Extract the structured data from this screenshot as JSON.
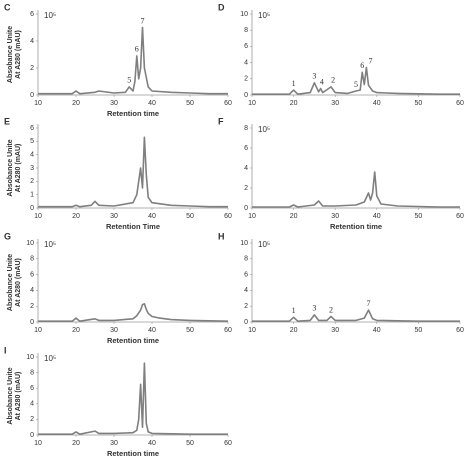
{
  "chart_data": [
    {
      "type": "line",
      "panel": "C",
      "scale_label": "10⁵",
      "ylabel": [
        "Absobance Unite",
        "At A280 (mAU)"
      ],
      "xlabel": "Retention time",
      "color": "#7f7f7f",
      "xlim": [
        10,
        60
      ],
      "xticks": [
        10,
        20,
        30,
        40,
        50,
        60
      ],
      "ylim": [
        0,
        6
      ],
      "yticks": [
        0,
        2,
        4,
        6
      ],
      "x": [
        10,
        15,
        19,
        20,
        21,
        25,
        26,
        30,
        33,
        34,
        35,
        35.5,
        36,
        36.5,
        37,
        37.5,
        38,
        39,
        40,
        45,
        50,
        55,
        60
      ],
      "values": [
        0.1,
        0.1,
        0.1,
        0.3,
        0.1,
        0.2,
        0.3,
        0.15,
        0.2,
        0.6,
        0.3,
        1.0,
        2.9,
        1.2,
        2.0,
        5.0,
        2.0,
        0.6,
        0.3,
        0.2,
        0.15,
        0.1,
        0.1
      ],
      "peak_labels": [
        {
          "label": "5",
          "x": 34,
          "y": 0.6
        },
        {
          "label": "6",
          "x": 36,
          "y": 2.9
        },
        {
          "label": "7",
          "x": 37.5,
          "y": 5.0
        }
      ]
    },
    {
      "type": "line",
      "panel": "D",
      "scale_label": "10⁵",
      "color": "#7f7f7f",
      "xlim": [
        10,
        60
      ],
      "xticks": [
        10,
        20,
        30,
        40,
        50,
        60
      ],
      "ylim": [
        0,
        10
      ],
      "yticks": [
        0,
        2,
        4,
        6,
        8,
        10
      ],
      "x": [
        10,
        15,
        19,
        20,
        21,
        24,
        25,
        26,
        26.5,
        27,
        29,
        30,
        33,
        35,
        36,
        36.5,
        37,
        37.5,
        38,
        39,
        40,
        45,
        50,
        55,
        60
      ],
      "values": [
        0.1,
        0.1,
        0.1,
        0.6,
        0.1,
        0.3,
        1.5,
        0.4,
        0.8,
        0.3,
        1.0,
        0.3,
        0.2,
        0.5,
        0.6,
        2.8,
        1.3,
        3.4,
        1.2,
        0.5,
        0.3,
        0.2,
        0.15,
        0.1,
        0.1
      ],
      "peak_labels": [
        {
          "label": "1",
          "x": 20,
          "y": 0.6
        },
        {
          "label": "3",
          "x": 25,
          "y": 1.5
        },
        {
          "label": "4",
          "x": 26.8,
          "y": 0.8
        },
        {
          "label": "2",
          "x": 29.5,
          "y": 1.0
        },
        {
          "label": "5",
          "x": 35,
          "y": 0.5
        },
        {
          "label": "6",
          "x": 36.5,
          "y": 2.8
        },
        {
          "label": "7",
          "x": 38.5,
          "y": 3.4
        }
      ]
    },
    {
      "type": "line",
      "panel": "E",
      "ylabel": [
        "Absobance Unite",
        "At A280 (mAU)"
      ],
      "xlabel": "Retention Time",
      "color": "#7f7f7f",
      "xlim": [
        10,
        60
      ],
      "xticks": [
        10,
        20,
        30,
        40,
        50,
        60
      ],
      "ylim": [
        0,
        6
      ],
      "yticks": [
        0,
        1,
        2,
        3,
        4,
        5,
        6
      ],
      "x": [
        10,
        15,
        19,
        20,
        21,
        24,
        25,
        26,
        30,
        35,
        36,
        37,
        37.5,
        38,
        38.5,
        39,
        40,
        45,
        50,
        55,
        60
      ],
      "values": [
        0.1,
        0.1,
        0.1,
        0.2,
        0.1,
        0.2,
        0.5,
        0.2,
        0.15,
        0.4,
        1.0,
        3.0,
        1.5,
        5.3,
        2.5,
        0.8,
        0.4,
        0.2,
        0.15,
        0.1,
        0.1
      ]
    },
    {
      "type": "line",
      "panel": "F",
      "scale_label": "10⁵",
      "xlabel": "Retention time",
      "color": "#7f7f7f",
      "xlim": [
        10,
        60
      ],
      "xticks": [
        10,
        20,
        30,
        40,
        50,
        60
      ],
      "ylim": [
        0,
        8
      ],
      "yticks": [
        0,
        2,
        4,
        6,
        8
      ],
      "x": [
        10,
        15,
        19,
        20,
        21,
        25,
        26,
        27,
        30,
        35,
        37,
        38,
        38.5,
        39,
        39.5,
        40,
        41,
        45,
        50,
        55,
        60
      ],
      "values": [
        0.1,
        0.1,
        0.1,
        0.3,
        0.1,
        0.3,
        0.7,
        0.2,
        0.2,
        0.3,
        0.6,
        1.5,
        0.8,
        1.5,
        3.6,
        1.2,
        0.4,
        0.2,
        0.15,
        0.1,
        0.1
      ]
    },
    {
      "type": "line",
      "panel": "G",
      "scale_label": "10⁵",
      "ylabel": [
        "Absobance Unite",
        "At A280 (mAU)"
      ],
      "xlabel": "Retention time",
      "color": "#7f7f7f",
      "xlim": [
        10,
        60
      ],
      "xticks": [
        10,
        20,
        30,
        40,
        50,
        60
      ],
      "ylim": [
        0,
        10
      ],
      "yticks": [
        0,
        2,
        4,
        6,
        8,
        10
      ],
      "x": [
        10,
        15,
        19,
        20,
        21,
        25,
        26,
        30,
        35,
        36,
        37,
        37.5,
        38,
        38.5,
        39,
        40,
        42,
        45,
        50,
        55,
        60
      ],
      "values": [
        0.1,
        0.1,
        0.1,
        0.5,
        0.1,
        0.4,
        0.2,
        0.2,
        0.4,
        0.8,
        1.5,
        2.2,
        2.3,
        1.6,
        1.1,
        0.7,
        0.5,
        0.3,
        0.2,
        0.15,
        0.1
      ]
    },
    {
      "type": "line",
      "panel": "H",
      "scale_label": "10⁵",
      "color": "#7f7f7f",
      "xlim": [
        10,
        60
      ],
      "xticks": [
        10,
        20,
        30,
        40,
        50,
        60
      ],
      "ylim": [
        0,
        10
      ],
      "yticks": [
        0,
        2,
        4,
        6,
        8,
        10
      ],
      "x": [
        10,
        15,
        19,
        20,
        21,
        24,
        25,
        26,
        28,
        29,
        30,
        35,
        37,
        38,
        39,
        40,
        45,
        50,
        55,
        60
      ],
      "values": [
        0.1,
        0.1,
        0.1,
        0.6,
        0.1,
        0.2,
        0.9,
        0.2,
        0.2,
        0.7,
        0.2,
        0.2,
        0.5,
        1.5,
        0.4,
        0.2,
        0.15,
        0.1,
        0.1,
        0.1
      ],
      "peak_labels": [
        {
          "label": "1",
          "x": 20,
          "y": 0.6
        },
        {
          "label": "3",
          "x": 25,
          "y": 0.9
        },
        {
          "label": "2",
          "x": 29,
          "y": 0.7
        },
        {
          "label": "7",
          "x": 38,
          "y": 1.5
        }
      ]
    },
    {
      "type": "line",
      "panel": "I",
      "scale_label": "10⁵",
      "ylabel": [
        "Absobance Unite",
        "At A280 (mAU)"
      ],
      "xlabel": "Retention time",
      "color": "#7f7f7f",
      "xlim": [
        10,
        60
      ],
      "xticks": [
        10,
        20,
        30,
        40,
        50,
        60
      ],
      "ylim": [
        0,
        10
      ],
      "yticks": [
        0,
        2,
        4,
        6,
        8,
        10
      ],
      "x": [
        10,
        15,
        19,
        20,
        21,
        25,
        26,
        30,
        35,
        36,
        36.5,
        37,
        37.5,
        38,
        38.5,
        39,
        40,
        45,
        50,
        55,
        60
      ],
      "values": [
        0.1,
        0.1,
        0.1,
        0.4,
        0.1,
        0.5,
        0.2,
        0.2,
        0.3,
        0.6,
        2.0,
        6.5,
        1.0,
        9.2,
        1.5,
        0.4,
        0.2,
        0.15,
        0.1,
        0.1,
        0.1
      ]
    }
  ]
}
